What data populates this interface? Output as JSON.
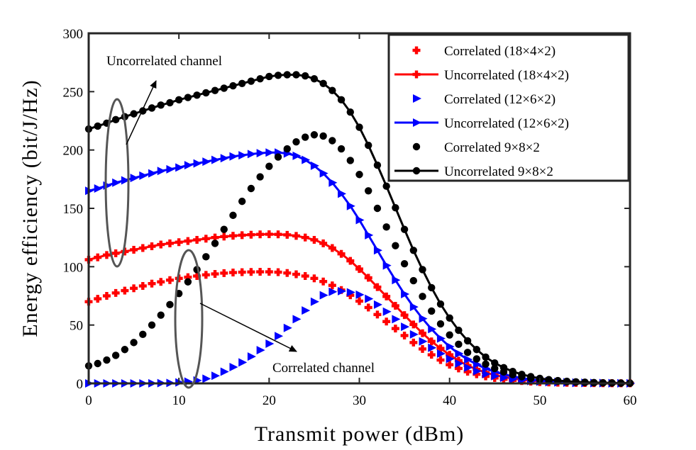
{
  "chart_data": {
    "type": "line",
    "title": "",
    "xlabel": "Transmit power (dBm)",
    "ylabel": "Energy efficiency (bit/J/Hz)",
    "xlim": [
      0,
      60
    ],
    "ylim": [
      0,
      300
    ],
    "xticks": [
      "0",
      "10",
      "20",
      "30",
      "40",
      "50",
      "60"
    ],
    "yticks": [
      "0",
      "50",
      "100",
      "150",
      "200",
      "250",
      "300"
    ],
    "grid": false,
    "legend_position": "top-right",
    "x": [
      0,
      1,
      2,
      3,
      4,
      5,
      6,
      7,
      8,
      9,
      10,
      11,
      12,
      13,
      14,
      15,
      16,
      17,
      18,
      19,
      20,
      21,
      22,
      23,
      24,
      25,
      26,
      27,
      28,
      29,
      30,
      31,
      32,
      33,
      34,
      35,
      36,
      37,
      38,
      39,
      40,
      41,
      42,
      43,
      44,
      45,
      46,
      47,
      48,
      49,
      50,
      51,
      52,
      53,
      54,
      55,
      56,
      57,
      58,
      59,
      60
    ],
    "series": [
      {
        "name": "Correlated (18×4×2)",
        "color": "#ff0000",
        "marker": "plus",
        "line": false,
        "values": [
          70,
          72.5,
          75,
          77.5,
          79.5,
          81.5,
          83.5,
          85.5,
          87,
          88.5,
          90,
          91,
          92,
          93,
          93.8,
          94.5,
          95,
          95.3,
          95.5,
          95.6,
          95.6,
          95.3,
          94.6,
          93.5,
          92,
          90,
          87.3,
          84,
          80,
          75.5,
          70.5,
          65,
          59,
          53,
          47,
          41,
          35,
          29.5,
          24.5,
          20,
          16,
          12.8,
          10,
          7.8,
          6,
          4.6,
          3.5,
          2.6,
          2,
          1.5,
          1.1,
          0.8,
          0.6,
          0.5,
          0.4,
          0.3,
          0.2,
          0.2,
          0.1,
          0.1,
          0.1
        ]
      },
      {
        "name": "Uncorrelated (18×4×2)",
        "color": "#ff0000",
        "marker": "plus",
        "line": true,
        "values": [
          106,
          108,
          110,
          111.5,
          113,
          114.5,
          116,
          117.5,
          119,
          120,
          121,
          122,
          123,
          124,
          125,
          125.8,
          126.5,
          127,
          127.4,
          127.7,
          127.8,
          127.7,
          127.3,
          126.4,
          125,
          123,
          120,
          116,
          111,
          105,
          98,
          90.5,
          82.5,
          74.5,
          66.5,
          58.5,
          50.5,
          43,
          36,
          30,
          24.5,
          19.5,
          15.3,
          12,
          9.3,
          7.2,
          5.5,
          4.2,
          3.2,
          2.4,
          1.8,
          1.3,
          1,
          0.8,
          0.6,
          0.4,
          0.3,
          0.2,
          0.2,
          0.1,
          0.1
        ]
      },
      {
        "name": "Correlated (12×6×2)",
        "color": "#0000ff",
        "marker": "triangle-right",
        "line": false,
        "values": [
          0,
          0,
          0,
          0,
          0,
          0,
          0,
          0.1,
          0.2,
          0.4,
          0.8,
          1.5,
          2.5,
          4,
          6.5,
          10,
          14,
          18,
          23,
          28.5,
          34,
          40.5,
          47.5,
          55,
          62.5,
          70,
          75.5,
          78.5,
          79,
          78,
          76,
          72.5,
          67.5,
          61.5,
          55,
          48.5,
          42,
          36,
          30.5,
          25.5,
          21,
          17,
          13.5,
          10.5,
          8,
          6.2,
          4.8,
          3.6,
          2.7,
          2,
          1.5,
          1.1,
          0.8,
          0.6,
          0.4,
          0.3,
          0.2,
          0.2,
          0.1,
          0.1,
          0.1
        ]
      },
      {
        "name": "Uncorrelated (12×6×2)",
        "color": "#0000ff",
        "marker": "triangle-right",
        "line": true,
        "values": [
          165,
          167,
          169.5,
          172,
          174,
          176,
          178,
          180,
          182,
          183.5,
          185,
          187,
          188.5,
          190,
          191.5,
          193,
          194.5,
          195.5,
          196.5,
          197.3,
          197.8,
          197.8,
          197,
          195,
          191.5,
          186.5,
          180,
          172,
          162.5,
          152,
          140,
          127,
          114,
          101,
          88.5,
          76.5,
          65.5,
          55.5,
          46.5,
          38.5,
          31.5,
          25.5,
          20.5,
          16.3,
          12.8,
          10,
          7.7,
          5.9,
          4.5,
          3.4,
          2.5,
          1.8,
          1.3,
          1,
          0.7,
          0.5,
          0.4,
          0.3,
          0.2,
          0.1,
          0.1
        ]
      },
      {
        "name": "Correlated 9×8×2",
        "color": "#000000",
        "marker": "circle",
        "line": false,
        "values": [
          15,
          17,
          20,
          24,
          29,
          35,
          42,
          50,
          58.5,
          67.5,
          77,
          87,
          97.5,
          108.5,
          120,
          132,
          144,
          156,
          167,
          177,
          186,
          194,
          201,
          207,
          211,
          213,
          212,
          208,
          201,
          191,
          179,
          165,
          150,
          134,
          118,
          102.5,
          88,
          74.5,
          62,
          51,
          41.5,
          33.5,
          26.5,
          21,
          16.5,
          12.8,
          9.8,
          7.5,
          5.7,
          4.3,
          3.2,
          2.4,
          1.8,
          1.3,
          1,
          0.7,
          0.5,
          0.4,
          0.3,
          0.2,
          0.1
        ]
      },
      {
        "name": "Uncorrelated 9×8×2",
        "color": "#000000",
        "marker": "circle",
        "line": true,
        "values": [
          218,
          220.5,
          223,
          226,
          228.5,
          231,
          233.5,
          236,
          238.5,
          240.5,
          243,
          245,
          247,
          249,
          251,
          253,
          255,
          257,
          259,
          261,
          263,
          264,
          264.5,
          264.5,
          263.5,
          261,
          257,
          251,
          243,
          232.5,
          219.5,
          204,
          187,
          169,
          150.5,
          132,
          114,
          97.5,
          82,
          68,
          56,
          45.5,
          36.5,
          29,
          22.5,
          17.5,
          13.5,
          10.2,
          7.7,
          5.8,
          4.3,
          3.2,
          2.4,
          1.8,
          1.3,
          1,
          0.7,
          0.5,
          0.4,
          0.3,
          0.2
        ]
      }
    ],
    "annotations": [
      {
        "text": "Uncorrelated channel",
        "target_x": 7,
        "target_y": 258
      },
      {
        "text": "Correlated channel",
        "target_x": 22.5,
        "target_y": 27
      }
    ]
  }
}
